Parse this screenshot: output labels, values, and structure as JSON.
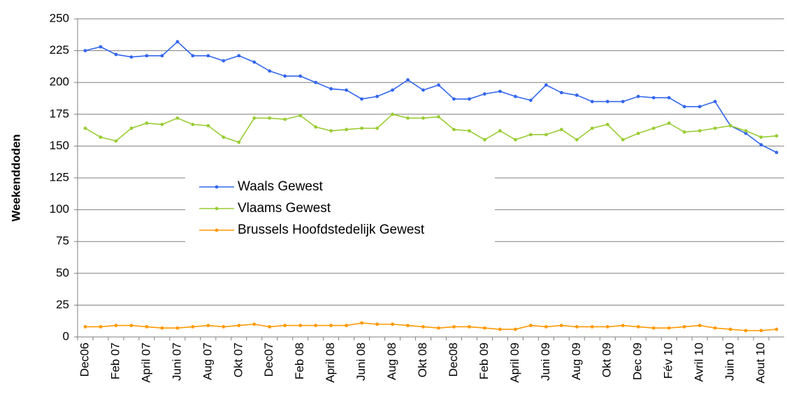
{
  "chart_data": {
    "type": "line",
    "y_label": "Weekenddoden",
    "categories": [
      "Dec06",
      null,
      "Feb 07",
      null,
      "April 07",
      null,
      "Juni 07",
      null,
      "Aug 07",
      null,
      "Okt 07",
      null,
      "Dec07",
      null,
      "Feb 08",
      null,
      "April 08",
      null,
      "Juni 08",
      null,
      "Aug 08",
      null,
      "Okt 08",
      null,
      "Dec08",
      null,
      "Feb 09",
      null,
      "April 09",
      null,
      "Juni 09",
      null,
      "Aug 09",
      null,
      "Okt 09",
      null,
      "Dec 09",
      null,
      "Fév 10",
      null,
      "Avril 10",
      null,
      "Juin 10",
      null,
      "Aout 10",
      null
    ],
    "series": [
      {
        "name": "Waals Gewest",
        "color": "#3366ee",
        "values": [
          225,
          228,
          222,
          220,
          221,
          221,
          232,
          221,
          221,
          217,
          221,
          216,
          209,
          205,
          205,
          200,
          195,
          194,
          187,
          189,
          194,
          202,
          194,
          198,
          187,
          187,
          191,
          193,
          189,
          186,
          198,
          192,
          190,
          185,
          185,
          185,
          189,
          188,
          188,
          181,
          181,
          185,
          166,
          160,
          151,
          145
        ]
      },
      {
        "name": "Vlaams Gewest",
        "color": "#99cc33",
        "values": [
          164,
          157,
          154,
          164,
          168,
          167,
          172,
          167,
          166,
          157,
          153,
          172,
          172,
          171,
          174,
          165,
          162,
          163,
          164,
          164,
          175,
          172,
          172,
          173,
          163,
          162,
          155,
          162,
          155,
          159,
          159,
          163,
          155,
          164,
          167,
          155,
          160,
          164,
          168,
          161,
          162,
          164,
          166,
          162,
          157,
          158
        ]
      },
      {
        "name": "Brussels Hoofdstedelijk Gewest",
        "color": "#ff9900",
        "values": [
          8,
          8,
          9,
          9,
          8,
          7,
          7,
          8,
          9,
          8,
          9,
          10,
          8,
          9,
          9,
          9,
          9,
          9,
          11,
          10,
          10,
          9,
          8,
          7,
          8,
          8,
          7,
          6,
          6,
          9,
          8,
          9,
          8,
          8,
          8,
          9,
          8,
          7,
          7,
          8,
          9,
          7,
          6,
          5,
          5,
          6
        ]
      }
    ],
    "ylim": [
      0,
      250
    ],
    "yticks": [
      0,
      25,
      50,
      75,
      100,
      125,
      150,
      175,
      200,
      225,
      250
    ],
    "grid": true,
    "legend": "center-left"
  }
}
